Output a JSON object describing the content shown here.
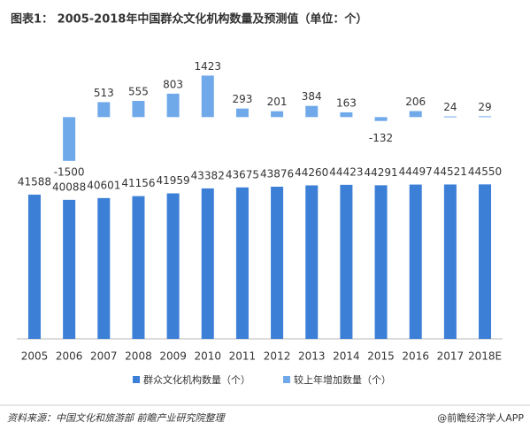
{
  "chart_data": {
    "type": "bar",
    "title": "图表1： 2005-2018年中国群众文化机构数量及预测值（单位：个）",
    "categories": [
      "2005",
      "2006",
      "2007",
      "2008",
      "2009",
      "2010",
      "2011",
      "2012",
      "2013",
      "2014",
      "2015",
      "2016",
      "2017",
      "2018E"
    ],
    "series": [
      {
        "name": "群众文化机构数量（个）",
        "color": "#3b7fd6",
        "values": [
          41588,
          40088,
          40601,
          41156,
          41959,
          43382,
          43675,
          43876,
          44260,
          44423,
          44291,
          44497,
          44521,
          44550
        ]
      },
      {
        "name": "较上年增加数量（个）",
        "color": "#70a9ea",
        "axis": "y2",
        "values": [
          null,
          -1500,
          513,
          555,
          803,
          1423,
          293,
          201,
          384,
          163,
          -132,
          206,
          24,
          29
        ]
      }
    ],
    "ylim": [
      0,
      87500
    ],
    "y2lim": [
      -7600,
      2800
    ],
    "legend": "bottom",
    "source": "资料来源：中国文化和旅游部  前瞻产业研究院整理",
    "brand": "@前瞻经济学人APP"
  }
}
